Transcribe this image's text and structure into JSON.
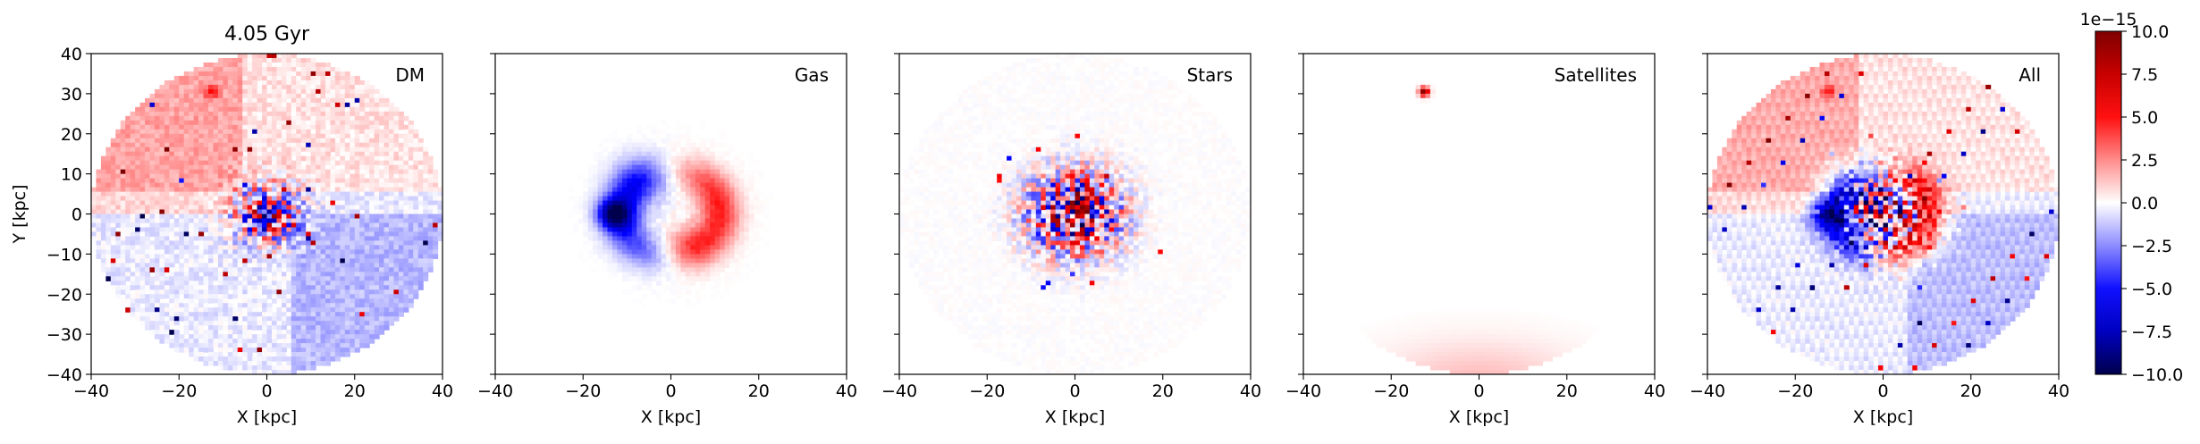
{
  "figure": {
    "title": "4.05 Gyr",
    "colorbar": {
      "offset_label": "1e−15",
      "vmin": -10.0,
      "vmax": 10.0,
      "ticks": [
        10.0,
        7.5,
        5.0,
        2.5,
        0.0,
        -2.5,
        -5.0,
        -7.5,
        -10.0
      ],
      "tick_labels": [
        "10.0",
        "7.5",
        "5.0",
        "2.5",
        "0.0",
        "−2.5",
        "−5.0",
        "−7.5",
        "−10.0"
      ],
      "colormap": "seismic",
      "colors": {
        "low": "#00004c",
        "mid": "#ffffff",
        "high": "#7f0000"
      }
    }
  },
  "chart_data": [
    {
      "type": "heatmap",
      "title": "4.05 Gyr",
      "label": "DM",
      "xlabel": "X [kpc]",
      "ylabel": "Y [kpc]",
      "xlim": [
        -40,
        40
      ],
      "ylim": [
        -40,
        40
      ],
      "xticks": [
        -40,
        -20,
        0,
        20,
        40
      ],
      "yticks": [
        40,
        30,
        20,
        10,
        0,
        -10,
        -20,
        -30,
        -40
      ],
      "xtick_labels": [
        "−40",
        "−20",
        "0",
        "20",
        "40"
      ],
      "ytick_labels": [
        "40",
        "30",
        "20",
        "10",
        "0",
        "−10",
        "−20",
        "−30",
        "−40"
      ]
    },
    {
      "type": "heatmap",
      "label": "Gas",
      "xlabel": "X [kpc]",
      "xlim": [
        -40,
        40
      ],
      "ylim": [
        -40,
        40
      ],
      "xticks": [
        -40,
        -20,
        0,
        20,
        40
      ],
      "xtick_labels": [
        "−40",
        "−20",
        "0",
        "20",
        "40"
      ]
    },
    {
      "type": "heatmap",
      "label": "Stars",
      "xlabel": "X [kpc]",
      "xlim": [
        -40,
        40
      ],
      "ylim": [
        -40,
        40
      ],
      "xticks": [
        -40,
        -20,
        0,
        20,
        40
      ],
      "xtick_labels": [
        "−40",
        "−20",
        "0",
        "20",
        "40"
      ]
    },
    {
      "type": "heatmap",
      "label": "Satellites",
      "xlabel": "X [kpc]",
      "xlim": [
        -40,
        40
      ],
      "ylim": [
        -40,
        40
      ],
      "xticks": [
        -40,
        -20,
        0,
        20,
        40
      ],
      "xtick_labels": [
        "−40",
        "−20",
        "0",
        "20",
        "40"
      ]
    },
    {
      "type": "heatmap",
      "label": "All",
      "xlabel": "X [kpc]",
      "xlim": [
        -40,
        40
      ],
      "ylim": [
        -40,
        40
      ],
      "xticks": [
        -40,
        -20,
        0,
        20,
        40
      ],
      "xtick_labels": [
        "−40",
        "−20",
        "0",
        "20",
        "40"
      ]
    }
  ]
}
